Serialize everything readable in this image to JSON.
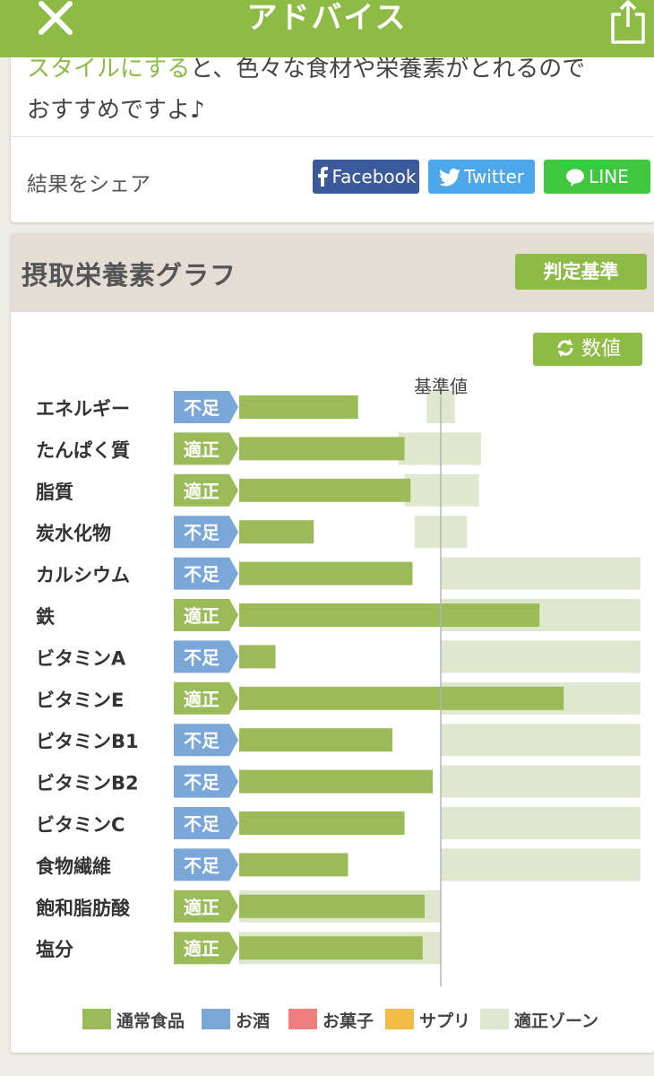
{
  "header": {
    "title": "アドバイス",
    "close_icon": "close-icon",
    "share_icon": "share-icon"
  },
  "advice": {
    "highlight_text": "スタイルにする",
    "text_after": "と、色々な食材や栄養素がとれるので",
    "line2": "おすすめですよ♪"
  },
  "share": {
    "label": "結果をシェア",
    "facebook": "Facebook",
    "twitter": "Twitter",
    "line": "LINE"
  },
  "graph_section": {
    "title": "摂取栄養素グラフ",
    "criteria_button": "判定基準",
    "value_button": "数値"
  },
  "colors": {
    "accent": "#8dbb45",
    "bar": "#9bbb59",
    "zone": "#dfe8cf",
    "status_low": "#7ba7d8",
    "status_ok": "#9bbb59",
    "facebook": "#3c5a99",
    "twitter": "#4da7e8",
    "line": "#3fc73f"
  },
  "chart_data": {
    "type": "bar",
    "orientation": "horizontal",
    "reference_label": "基準値",
    "reference_value": 100,
    "unit_note": "percent of reference value (estimated)",
    "categories": [
      "エネルギー",
      "たんぱく質",
      "脂質",
      "炭水化物",
      "カルシウム",
      "鉄",
      "ビタミンA",
      "ビタミンE",
      "ビタミンB1",
      "ビタミンB2",
      "ビタミンC",
      "食物繊維",
      "飽和脂肪酸",
      "塩分"
    ],
    "status": [
      "不足",
      "適正",
      "適正",
      "不足",
      "不足",
      "適正",
      "不足",
      "適正",
      "不足",
      "不足",
      "不足",
      "不足",
      "適正",
      "適正"
    ],
    "values": [
      59,
      82,
      85,
      37,
      86,
      149,
      18,
      161,
      76,
      96,
      82,
      54,
      92,
      91
    ],
    "zones": [
      [
        93,
        107
      ],
      [
        79,
        120
      ],
      [
        82,
        119
      ],
      [
        87,
        113
      ],
      [
        100,
        199
      ],
      [
        100,
        199
      ],
      [
        100,
        199
      ],
      [
        100,
        199
      ],
      [
        100,
        199
      ],
      [
        100,
        199
      ],
      [
        100,
        199
      ],
      [
        100,
        199
      ],
      [
        0,
        100
      ],
      [
        0,
        100
      ]
    ],
    "legend": [
      "通常食品",
      "お酒",
      "お菓子",
      "サプリ",
      "適正ゾーン"
    ],
    "legend_colors": [
      "#9bbb59",
      "#7ba7d8",
      "#ef7f7f",
      "#f3bc45",
      "#dfe8cf"
    ]
  }
}
